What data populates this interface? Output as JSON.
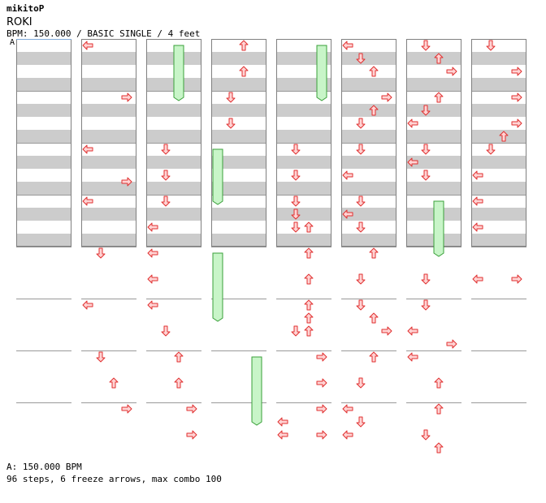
{
  "header": {
    "artist": "mikitoP",
    "song": "ROKI",
    "meta": "BPM: 150.000 / BASIC SINGLE / 4 feet",
    "bpm_marker": "A"
  },
  "footer": {
    "bpm_legend": "A: 150.000 BPM",
    "summary": "96 steps, 6 freeze arrows, max combo 100"
  },
  "colors": {
    "stripe": "#cccccc",
    "border": "#808080",
    "measure_line": "#999999",
    "arrow_fill": "#ffd4d4",
    "arrow_stroke": "#e03030",
    "freeze_fill": "#c8f5c8",
    "freeze_stroke": "#3aa03a"
  },
  "chart_data": {
    "type": "step-chart",
    "columns": 8,
    "measures_per_column": 8,
    "rows_per_measure": 8,
    "lanes": [
      "left",
      "down",
      "up",
      "right"
    ],
    "arrows": [
      {
        "c": 1,
        "r": 2,
        "l": "left"
      },
      {
        "c": 1,
        "r": 18,
        "l": "right"
      },
      {
        "c": 1,
        "r": 34,
        "l": "left"
      },
      {
        "c": 1,
        "r": 44,
        "l": "right"
      },
      {
        "c": 1,
        "r": 50,
        "l": "left"
      },
      {
        "c": 1,
        "r": 66,
        "l": "down"
      },
      {
        "c": 1,
        "r": 82,
        "l": "left"
      },
      {
        "c": 1,
        "r": 98,
        "l": "down"
      },
      {
        "c": 1,
        "r": 106,
        "l": "up"
      },
      {
        "c": 1,
        "r": 114,
        "l": "right"
      },
      {
        "c": 2,
        "r": 34,
        "l": "down"
      },
      {
        "c": 2,
        "r": 42,
        "l": "down"
      },
      {
        "c": 2,
        "r": 50,
        "l": "down"
      },
      {
        "c": 2,
        "r": 58,
        "l": "left"
      },
      {
        "c": 2,
        "r": 66,
        "l": "left"
      },
      {
        "c": 2,
        "r": 74,
        "l": "left"
      },
      {
        "c": 2,
        "r": 82,
        "l": "left"
      },
      {
        "c": 2,
        "r": 90,
        "l": "down"
      },
      {
        "c": 2,
        "r": 98,
        "l": "up"
      },
      {
        "c": 2,
        "r": 106,
        "l": "up"
      },
      {
        "c": 2,
        "r": 114,
        "l": "right"
      },
      {
        "c": 2,
        "r": 122,
        "l": "right"
      },
      {
        "c": 3,
        "r": 2,
        "l": "up"
      },
      {
        "c": 3,
        "r": 10,
        "l": "up"
      },
      {
        "c": 3,
        "r": 18,
        "l": "down"
      },
      {
        "c": 3,
        "r": 26,
        "l": "down"
      },
      {
        "c": 4,
        "r": 34,
        "l": "down"
      },
      {
        "c": 4,
        "r": 42,
        "l": "down"
      },
      {
        "c": 4,
        "r": 50,
        "l": "down"
      },
      {
        "c": 4,
        "r": 54,
        "l": "down"
      },
      {
        "c": 4,
        "r": 58,
        "l": "down"
      },
      {
        "c": 4,
        "r": 58,
        "l": "up"
      },
      {
        "c": 4,
        "r": 66,
        "l": "up"
      },
      {
        "c": 4,
        "r": 74,
        "l": "up"
      },
      {
        "c": 4,
        "r": 82,
        "l": "up"
      },
      {
        "c": 4,
        "r": 86,
        "l": "up"
      },
      {
        "c": 4,
        "r": 90,
        "l": "down"
      },
      {
        "c": 4,
        "r": 90,
        "l": "up"
      },
      {
        "c": 4,
        "r": 98,
        "l": "right"
      },
      {
        "c": 4,
        "r": 106,
        "l": "right"
      },
      {
        "c": 4,
        "r": 114,
        "l": "right"
      },
      {
        "c": 4,
        "r": 118,
        "l": "left"
      },
      {
        "c": 4,
        "r": 122,
        "l": "left"
      },
      {
        "c": 4,
        "r": 122,
        "l": "right"
      },
      {
        "c": 5,
        "r": 2,
        "l": "left"
      },
      {
        "c": 5,
        "r": 6,
        "l": "down"
      },
      {
        "c": 5,
        "r": 10,
        "l": "up"
      },
      {
        "c": 5,
        "r": 18,
        "l": "right"
      },
      {
        "c": 5,
        "r": 22,
        "l": "up"
      },
      {
        "c": 5,
        "r": 26,
        "l": "down"
      },
      {
        "c": 5,
        "r": 34,
        "l": "down"
      },
      {
        "c": 5,
        "r": 42,
        "l": "left"
      },
      {
        "c": 5,
        "r": 50,
        "l": "down"
      },
      {
        "c": 5,
        "r": 54,
        "l": "left"
      },
      {
        "c": 5,
        "r": 58,
        "l": "down"
      },
      {
        "c": 5,
        "r": 66,
        "l": "up"
      },
      {
        "c": 5,
        "r": 74,
        "l": "down"
      },
      {
        "c": 5,
        "r": 82,
        "l": "down"
      },
      {
        "c": 5,
        "r": 86,
        "l": "up"
      },
      {
        "c": 5,
        "r": 90,
        "l": "right"
      },
      {
        "c": 5,
        "r": 98,
        "l": "up"
      },
      {
        "c": 5,
        "r": 106,
        "l": "down"
      },
      {
        "c": 5,
        "r": 114,
        "l": "left"
      },
      {
        "c": 5,
        "r": 118,
        "l": "down"
      },
      {
        "c": 5,
        "r": 122,
        "l": "left"
      },
      {
        "c": 6,
        "r": 2,
        "l": "down"
      },
      {
        "c": 6,
        "r": 6,
        "l": "up"
      },
      {
        "c": 6,
        "r": 10,
        "l": "right"
      },
      {
        "c": 6,
        "r": 18,
        "l": "up"
      },
      {
        "c": 6,
        "r": 22,
        "l": "down"
      },
      {
        "c": 6,
        "r": 26,
        "l": "left"
      },
      {
        "c": 6,
        "r": 34,
        "l": "down"
      },
      {
        "c": 6,
        "r": 38,
        "l": "left"
      },
      {
        "c": 6,
        "r": 42,
        "l": "down"
      },
      {
        "c": 6,
        "r": 74,
        "l": "down"
      },
      {
        "c": 6,
        "r": 82,
        "l": "down"
      },
      {
        "c": 6,
        "r": 90,
        "l": "left"
      },
      {
        "c": 6,
        "r": 94,
        "l": "right"
      },
      {
        "c": 6,
        "r": 98,
        "l": "left"
      },
      {
        "c": 6,
        "r": 106,
        "l": "up"
      },
      {
        "c": 6,
        "r": 114,
        "l": "up"
      },
      {
        "c": 6,
        "r": 122,
        "l": "down"
      },
      {
        "c": 6,
        "r": 126,
        "l": "up"
      },
      {
        "c": 7,
        "r": 2,
        "l": "down"
      },
      {
        "c": 7,
        "r": 10,
        "l": "right"
      },
      {
        "c": 7,
        "r": 18,
        "l": "right"
      },
      {
        "c": 7,
        "r": 26,
        "l": "right"
      },
      {
        "c": 7,
        "r": 30,
        "l": "up"
      },
      {
        "c": 7,
        "r": 34,
        "l": "down"
      },
      {
        "c": 7,
        "r": 42,
        "l": "left"
      },
      {
        "c": 7,
        "r": 50,
        "l": "left"
      },
      {
        "c": 7,
        "r": 58,
        "l": "left"
      },
      {
        "c": 7,
        "r": 74,
        "l": "left"
      },
      {
        "c": 7,
        "r": 74,
        "l": "right"
      }
    ],
    "freezes": [
      {
        "c": 2,
        "s": 2,
        "e": 18,
        "l": "up"
      },
      {
        "c": 3,
        "s": 34,
        "e": 50,
        "l": "left"
      },
      {
        "c": 3,
        "s": 66,
        "e": 86,
        "l": "left"
      },
      {
        "c": 3,
        "s": 98,
        "e": 118,
        "l": "right"
      },
      {
        "c": 4,
        "s": 2,
        "e": 18,
        "l": "right"
      },
      {
        "c": 6,
        "s": 50,
        "e": 66,
        "l": "up"
      }
    ]
  }
}
